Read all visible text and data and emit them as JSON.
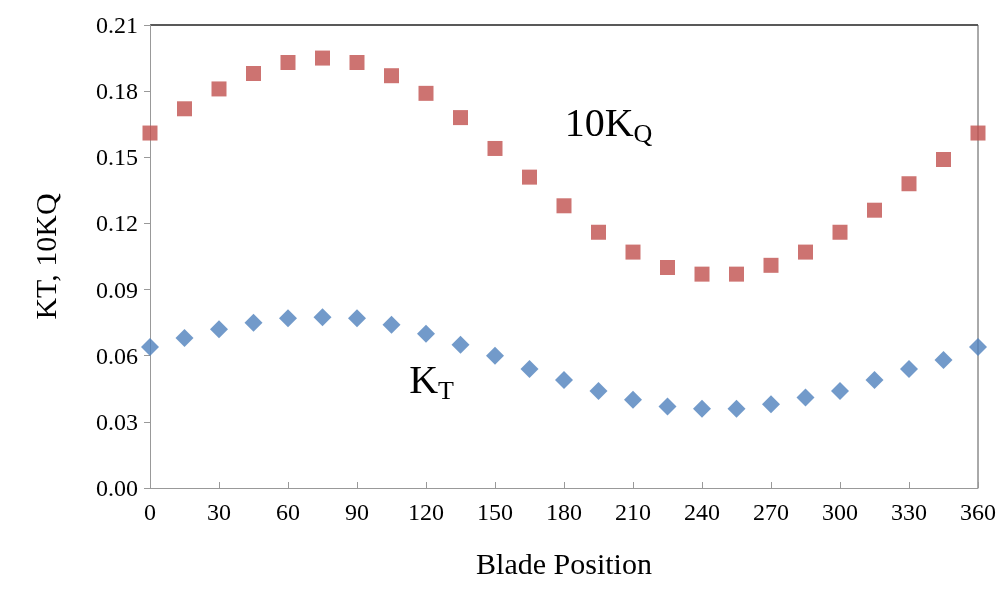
{
  "chart_data": {
    "type": "scatter",
    "xlabel": "Blade Position",
    "ylabel": "KT, 10KQ",
    "x": [
      0,
      15,
      30,
      45,
      60,
      75,
      90,
      105,
      120,
      135,
      150,
      165,
      180,
      195,
      210,
      225,
      240,
      255,
      270,
      285,
      300,
      315,
      330,
      345,
      360
    ],
    "series": [
      {
        "name": "10K$_{Q}$",
        "color": "#c0504d",
        "marker": "square",
        "values": [
          0.161,
          0.172,
          0.181,
          0.188,
          0.193,
          0.195,
          0.193,
          0.187,
          0.179,
          0.168,
          0.154,
          0.141,
          0.128,
          0.116,
          0.107,
          0.1,
          0.097,
          0.097,
          0.101,
          0.107,
          0.116,
          0.126,
          0.138,
          0.149,
          0.161
        ]
      },
      {
        "name": "K$_{T}$",
        "color": "#4f81bd",
        "marker": "diamond",
        "values": [
          0.064,
          0.068,
          0.072,
          0.075,
          0.077,
          0.0775,
          0.077,
          0.074,
          0.07,
          0.065,
          0.06,
          0.054,
          0.049,
          0.044,
          0.04,
          0.037,
          0.036,
          0.036,
          0.038,
          0.041,
          0.044,
          0.049,
          0.054,
          0.058,
          0.064
        ]
      }
    ],
    "xlim": [
      0,
      360
    ],
    "xticks": [
      0,
      30,
      60,
      90,
      120,
      150,
      180,
      210,
      240,
      270,
      300,
      330,
      360
    ],
    "ylim": [
      0,
      0.21
    ],
    "yticks": [
      {
        "value": 0,
        "label": "0.00"
      },
      0.03,
      0.06,
      0.09,
      0.12,
      0.15,
      0.18,
      0.21
    ],
    "grid": false,
    "legend": false
  }
}
